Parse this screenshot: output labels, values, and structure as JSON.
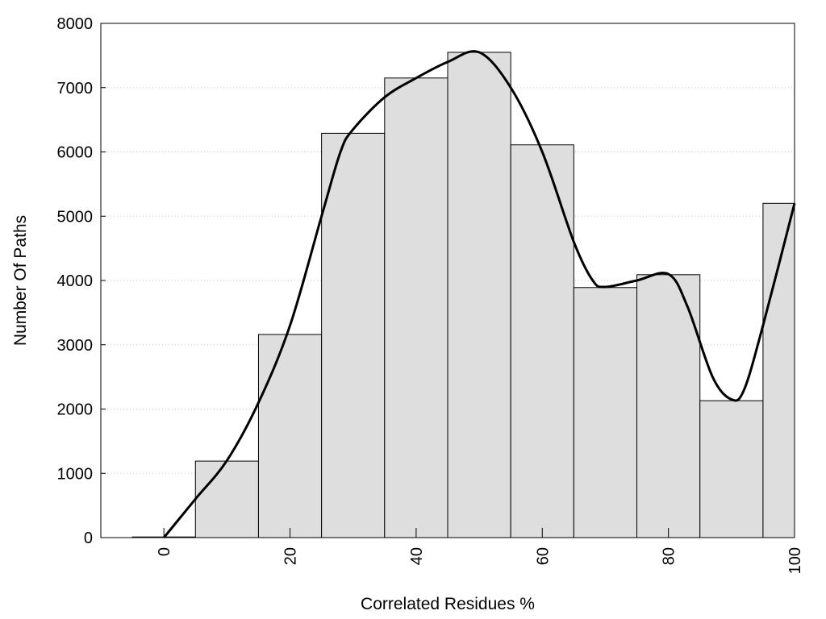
{
  "chart_data": {
    "type": "bar",
    "title": "",
    "xlabel": "Correlated Residues %",
    "ylabel": "Number Of Paths",
    "xlim": [
      -10,
      100
    ],
    "ylim": [
      0,
      8000
    ],
    "x_ticks": [
      0,
      20,
      40,
      60,
      80,
      100
    ],
    "y_ticks": [
      0,
      1000,
      2000,
      3000,
      4000,
      5000,
      6000,
      7000,
      8000
    ],
    "grid": "horizontal dotted",
    "bar_color": "#dedede",
    "bins": [
      {
        "start": -5,
        "end": 5,
        "value": 10
      },
      {
        "start": 5,
        "end": 15,
        "value": 1190
      },
      {
        "start": 15,
        "end": 25,
        "value": 3160
      },
      {
        "start": 25,
        "end": 35,
        "value": 6290
      },
      {
        "start": 35,
        "end": 45,
        "value": 7150
      },
      {
        "start": 45,
        "end": 55,
        "value": 7550
      },
      {
        "start": 55,
        "end": 65,
        "value": 6110
      },
      {
        "start": 65,
        "end": 75,
        "value": 3890
      },
      {
        "start": 75,
        "end": 85,
        "value": 4090
      },
      {
        "start": 85,
        "end": 95,
        "value": 2130
      },
      {
        "start": 95,
        "end": 100,
        "value": 5200
      }
    ],
    "curve": {
      "type": "line",
      "color": "#000000",
      "points": [
        [
          0,
          0
        ],
        [
          5,
          600
        ],
        [
          10,
          1200
        ],
        [
          15,
          2100
        ],
        [
          20,
          3300
        ],
        [
          25,
          5000
        ],
        [
          28,
          6000
        ],
        [
          30,
          6350
        ],
        [
          35,
          6850
        ],
        [
          40,
          7150
        ],
        [
          45,
          7400
        ],
        [
          50,
          7550
        ],
        [
          55,
          7000
        ],
        [
          60,
          6000
        ],
        [
          65,
          4600
        ],
        [
          68,
          4000
        ],
        [
          70,
          3900
        ],
        [
          75,
          4000
        ],
        [
          80,
          4100
        ],
        [
          83,
          3600
        ],
        [
          87,
          2500
        ],
        [
          90,
          2150
        ],
        [
          92,
          2300
        ],
        [
          95,
          3300
        ],
        [
          100,
          5200
        ]
      ]
    }
  }
}
